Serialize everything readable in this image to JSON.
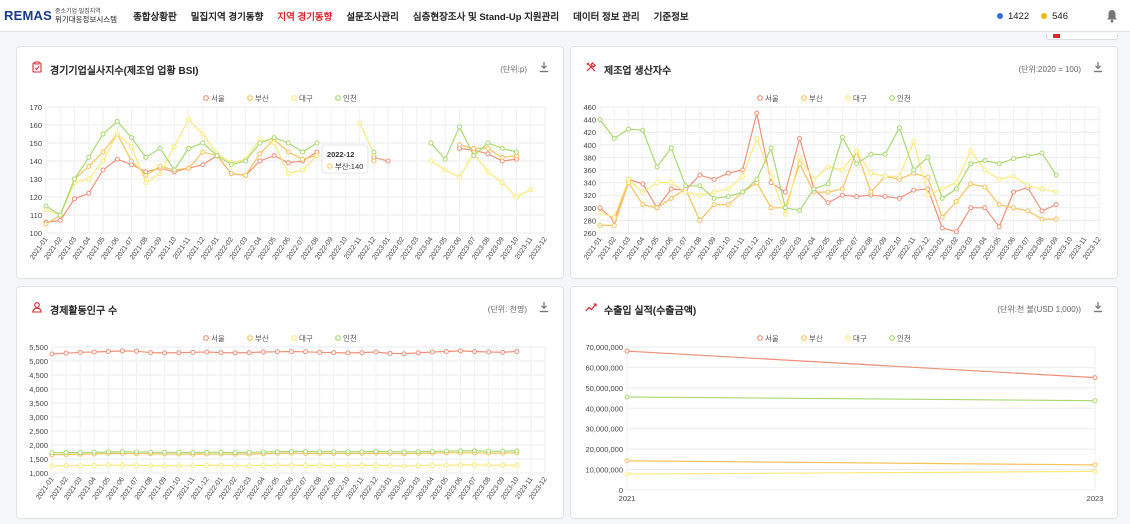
{
  "header": {
    "logo_text": "REMAS",
    "logo_sub1": "중소기업 밀집지역",
    "logo_sub2": "위기대응정보시스템",
    "menu": [
      {
        "label": "종합상황판",
        "active": false
      },
      {
        "label": "밀집지역 경기동향",
        "active": false
      },
      {
        "label": "지역 경기동향",
        "active": true
      },
      {
        "label": "설문조사관리",
        "active": false
      },
      {
        "label": "심층현장조사 및 Stand-Up 지원관리",
        "active": false
      },
      {
        "label": "데이터 정보 관리",
        "active": false
      },
      {
        "label": "기준정보",
        "active": false
      }
    ],
    "stat_blue": "1422",
    "stat_yellow": "546",
    "colors": {
      "blue": "#2f6fd6",
      "yellow": "#f5b800",
      "active": "#e0262d"
    }
  },
  "legend": [
    "서울",
    "부산",
    "대구",
    "인천"
  ],
  "series_colors": [
    "#f0907a",
    "#f6c25e",
    "#fbe97a",
    "#a9d873"
  ],
  "tooltip": {
    "title": "2022-12",
    "line": "부산:140"
  },
  "cards": [
    {
      "title": "경기기업실사지수(제조업 업황 BSI)",
      "unit": "(단위:p)",
      "icon": "clipboard-icon"
    },
    {
      "title": "제조업 생산자수",
      "unit": "(단위:2020 = 100)",
      "icon": "tools-icon"
    },
    {
      "title": "경제활동인구 수",
      "unit": "(단위: 천명)",
      "icon": "person-icon"
    },
    {
      "title": "수출입 실적(수출금액)",
      "unit": "(단위:천 불(USD 1,000))",
      "icon": "trend-icon"
    }
  ],
  "chart_data": [
    {
      "type": "line",
      "title": "경기기업실사지수(제조업 업황 BSI)",
      "ylim": [
        100,
        170
      ],
      "yticks": [
        "100",
        "110",
        "120",
        "130",
        "140",
        "150",
        "160",
        "170"
      ],
      "categories": [
        "2021-01",
        "2021-02",
        "2021-03",
        "2021-04",
        "2021-05",
        "2021-06",
        "2021-07",
        "2021-08",
        "2021-09",
        "2021-10",
        "2021-11",
        "2021-12",
        "2022-01",
        "2022-02",
        "2022-03",
        "2022-04",
        "2022-05",
        "2022-06",
        "2022-07",
        "2022-08",
        "2022-09",
        "2022-10",
        "2022-11",
        "2022-12",
        "2023-01",
        "2023-02",
        "2023-03",
        "2023-04",
        "2023-05",
        "2023-06",
        "2023-07",
        "2023-08",
        "2023-09",
        "2023-10",
        "2023-11",
        "2023-12"
      ],
      "series": [
        {
          "name": "서울",
          "values": [
            106,
            107,
            119,
            122,
            135,
            141,
            138,
            134,
            136,
            134,
            136,
            138,
            143,
            133,
            132,
            140,
            143,
            139,
            140,
            145,
            null,
            null,
            null,
            142,
            140,
            null,
            null,
            null,
            null,
            147,
            146,
            144,
            140,
            141,
            null,
            null
          ]
        },
        {
          "name": "부산",
          "values": [
            105,
            110,
            130,
            137,
            145,
            155,
            140,
            132,
            137,
            135,
            136,
            145,
            143,
            133,
            132,
            144,
            152,
            145,
            141,
            143,
            null,
            null,
            null,
            140,
            null,
            null,
            null,
            null,
            null,
            149,
            147,
            147,
            142,
            143,
            null,
            null
          ]
        },
        {
          "name": "대구",
          "values": [
            113,
            110,
            128,
            130,
            140,
            155,
            148,
            128,
            133,
            148,
            163,
            155,
            144,
            139,
            141,
            152,
            150,
            133,
            135,
            143,
            null,
            null,
            161,
            144,
            null,
            null,
            null,
            140,
            135,
            131,
            144,
            134,
            128,
            120,
            124,
            null
          ]
        },
        {
          "name": "인천",
          "values": [
            115,
            110,
            130,
            142,
            155,
            162,
            153,
            142,
            147,
            135,
            147,
            150,
            143,
            138,
            140,
            150,
            153,
            150,
            145,
            150,
            null,
            null,
            null,
            145,
            null,
            null,
            null,
            150,
            141,
            159,
            143,
            150,
            147,
            145,
            null,
            null
          ]
        }
      ]
    },
    {
      "type": "line",
      "title": "제조업 생산자수",
      "ylim": [
        260,
        460
      ],
      "yticks": [
        "260",
        "280",
        "300",
        "320",
        "340",
        "360",
        "380",
        "400",
        "420",
        "440",
        "460"
      ],
      "categories": [
        "2021-01",
        "2021-02",
        "2021-03",
        "2021-04",
        "2021-05",
        "2021-06",
        "2021-07",
        "2021-08",
        "2021-09",
        "2021-10",
        "2021-11",
        "2021-12",
        "2022-01",
        "2022-02",
        "2022-03",
        "2022-04",
        "2022-05",
        "2022-06",
        "2022-07",
        "2022-08",
        "2022-09",
        "2022-10",
        "2022-11",
        "2022-12",
        "2023-01",
        "2023-02",
        "2023-03",
        "2023-04",
        "2023-05",
        "2023-06",
        "2023-07",
        "2023-08",
        "2023-09",
        "2023-10",
        "2023-11",
        "2023-12"
      ],
      "series": [
        {
          "name": "서울",
          "values": [
            300,
            280,
            345,
            338,
            300,
            330,
            328,
            352,
            345,
            355,
            360,
            450,
            340,
            325,
            410,
            330,
            308,
            320,
            318,
            320,
            318,
            315,
            328,
            330,
            268,
            262,
            300,
            300,
            270,
            325,
            332,
            295,
            305,
            null,
            null,
            null
          ]
        },
        {
          "name": "부산",
          "values": [
            272,
            272,
            340,
            305,
            300,
            315,
            330,
            280,
            305,
            305,
            325,
            340,
            300,
            300,
            370,
            325,
            325,
            330,
            390,
            325,
            350,
            345,
            355,
            348,
            285,
            310,
            338,
            333,
            305,
            300,
            295,
            282,
            282,
            null,
            null,
            null
          ]
        },
        {
          "name": "대구",
          "values": [
            292,
            285,
            345,
            325,
            340,
            340,
            325,
            320,
            325,
            330,
            350,
            410,
            350,
            290,
            380,
            345,
            365,
            360,
            390,
            355,
            350,
            350,
            405,
            320,
            330,
            340,
            390,
            360,
            345,
            350,
            335,
            330,
            325,
            null,
            null,
            null
          ]
        },
        {
          "name": "인천",
          "values": [
            440,
            410,
            425,
            423,
            365,
            395,
            335,
            335,
            315,
            318,
            325,
            345,
            395,
            300,
            296,
            330,
            338,
            412,
            370,
            385,
            385,
            427,
            360,
            380,
            315,
            330,
            370,
            375,
            370,
            378,
            382,
            387,
            352,
            null,
            null,
            null
          ]
        }
      ]
    },
    {
      "type": "line",
      "title": "경제활동인구 수",
      "ylim": [
        1000,
        5500
      ],
      "yticks": [
        "1,000",
        "1,500",
        "2,000",
        "2,500",
        "3,000",
        "3,500",
        "4,000",
        "4,500",
        "5,000",
        "5,500"
      ],
      "categories": [
        "2021-01",
        "2021-02",
        "2021-03",
        "2021-04",
        "2021-05",
        "2021-06",
        "2021-07",
        "2021-08",
        "2021-09",
        "2021-10",
        "2021-11",
        "2021-12",
        "2022-01",
        "2022-02",
        "2022-03",
        "2022-04",
        "2022-05",
        "2022-06",
        "2022-07",
        "2022-08",
        "2022-09",
        "2022-10",
        "2022-11",
        "2022-12",
        "2023-01",
        "2023-02",
        "2023-03",
        "2023-04",
        "2023-05",
        "2023-06",
        "2023-07",
        "2023-08",
        "2023-09",
        "2023-10",
        "2023-11",
        "2023-12"
      ],
      "series": [
        {
          "name": "서울",
          "values": [
            5250,
            5280,
            5310,
            5320,
            5340,
            5360,
            5350,
            5300,
            5290,
            5300,
            5310,
            5320,
            5300,
            5290,
            5300,
            5320,
            5330,
            5340,
            5330,
            5310,
            5300,
            5290,
            5300,
            5320,
            5270,
            5260,
            5290,
            5320,
            5340,
            5360,
            5340,
            5320,
            5310,
            5340,
            null,
            null
          ]
        },
        {
          "name": "부산",
          "values": [
            1650,
            1660,
            1670,
            1680,
            1700,
            1700,
            1690,
            1690,
            1680,
            1680,
            1670,
            1680,
            1680,
            1670,
            1680,
            1690,
            1700,
            1710,
            1700,
            1700,
            1700,
            1700,
            1700,
            1710,
            1700,
            1690,
            1700,
            1710,
            1720,
            1720,
            1720,
            1710,
            1710,
            1720,
            null,
            null
          ]
        },
        {
          "name": "대구",
          "values": [
            1250,
            1260,
            1260,
            1270,
            1280,
            1280,
            1270,
            1260,
            1260,
            1260,
            1260,
            1270,
            1270,
            1260,
            1260,
            1270,
            1270,
            1270,
            1270,
            1270,
            1260,
            1260,
            1270,
            1270,
            1260,
            1250,
            1260,
            1270,
            1280,
            1290,
            1290,
            1280,
            1280,
            1280,
            null,
            null
          ]
        },
        {
          "name": "인천",
          "values": [
            1720,
            1730,
            1730,
            1740,
            1750,
            1760,
            1750,
            1740,
            1740,
            1740,
            1730,
            1740,
            1740,
            1730,
            1740,
            1750,
            1760,
            1770,
            1770,
            1760,
            1760,
            1760,
            1760,
            1770,
            1760,
            1750,
            1760,
            1770,
            1780,
            1790,
            1790,
            1780,
            1780,
            1790,
            null,
            null
          ]
        }
      ]
    },
    {
      "type": "line",
      "title": "수출입 실적(수출금액)",
      "ylim": [
        0,
        70000000
      ],
      "yticks": [
        "0",
        "10,000,000",
        "20,000,000",
        "30,000,000",
        "40,000,000",
        "50,000,000",
        "60,000,000",
        "70,000,000"
      ],
      "categories": [
        "2021",
        "2023"
      ],
      "series": [
        {
          "name": "서울",
          "values": [
            68000000,
            55000000
          ]
        },
        {
          "name": "부산",
          "values": [
            14300000,
            12300000
          ]
        },
        {
          "name": "대구",
          "values": [
            7800000,
            9100000
          ]
        },
        {
          "name": "인천",
          "values": [
            45500000,
            43700000
          ]
        }
      ]
    }
  ]
}
